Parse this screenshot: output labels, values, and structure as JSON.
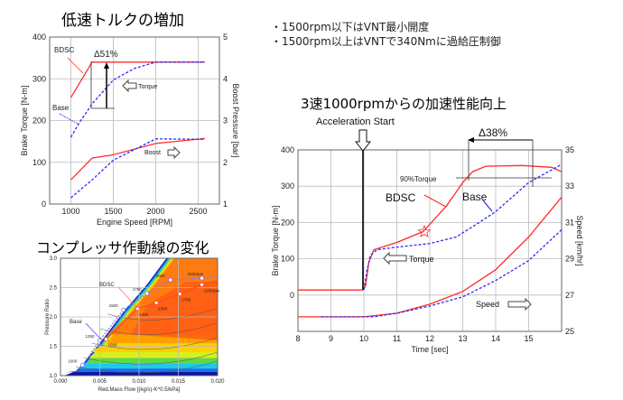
{
  "titles": {
    "low_speed_torque": "低速トルクの増加",
    "compressor_line": "コンプレッサ作動線の変化",
    "acceleration": "3速1000rpmからの加速性能向上"
  },
  "bullets": [
    "・1500rpm以下はVNT最小開度",
    "・1500rpm以上はVNTで340Nmに過給圧制御"
  ],
  "colors": {
    "bdsc": "#ff2a2a",
    "base": "#2a2aff",
    "grid": "#bbbbbb"
  },
  "chart_data": [
    {
      "type": "line",
      "xlabel": "Engine Speed [RPM]",
      "ylabel": "Brake Torque [N-m]",
      "y2label": "Boost Pressure [bar]",
      "xlim": [
        750,
        2750
      ],
      "ylim": [
        0,
        400
      ],
      "y2lim": [
        1,
        5
      ],
      "xticks": [
        "1000",
        "1500",
        "2000",
        "2500"
      ],
      "yticks": [
        "0",
        "100",
        "200",
        "300",
        "400"
      ],
      "y2ticks": [
        "1",
        "2",
        "3",
        "4",
        "5"
      ],
      "grid": true,
      "series": [
        {
          "name": "BDSC",
          "group": "Torque",
          "axis": "left",
          "style": "solid",
          "points": [
            [
              1000,
              255
            ],
            [
              1250,
              340
            ],
            [
              2580,
              340
            ]
          ]
        },
        {
          "name": "Base",
          "group": "Torque",
          "axis": "left",
          "style": "dashed",
          "points": [
            [
              1000,
              160
            ],
            [
              1100,
              195
            ],
            [
              1250,
              240
            ],
            [
              1500,
              297
            ],
            [
              1750,
              325
            ],
            [
              2000,
              340
            ],
            [
              2580,
              340
            ]
          ]
        },
        {
          "name": "BDSC",
          "group": "Boost",
          "axis": "right",
          "style": "solid",
          "points": [
            [
              1000,
              1.58
            ],
            [
              1250,
              2.1
            ],
            [
              1500,
              2.18
            ],
            [
              2000,
              2.45
            ],
            [
              2580,
              2.57
            ]
          ]
        },
        {
          "name": "Base",
          "group": "Boost",
          "axis": "right",
          "style": "dashed",
          "points": [
            [
              1000,
              1.15
            ],
            [
              1250,
              1.58
            ],
            [
              1500,
              2.05
            ],
            [
              2000,
              2.56
            ],
            [
              2580,
              2.55
            ]
          ]
        }
      ],
      "annotations": {
        "bdsc": "BDSC",
        "base": "Base",
        "delta": "Δ51%",
        "torque": "Torque",
        "boost": "Boost"
      }
    },
    {
      "type": "line",
      "xlabel": "Time [sec]",
      "ylabel": "Brake Torque [N-m]",
      "y2label": "Speed [km/hr]",
      "xlim": [
        8,
        16
      ],
      "ylim": [
        -100,
        400
      ],
      "y2lim": [
        25,
        35
      ],
      "xticks": [
        "8",
        "9",
        "10",
        "11",
        "12",
        "13",
        "14",
        "15"
      ],
      "yticks": [
        "0",
        "100",
        "200",
        "300",
        "400"
      ],
      "y2ticks": [
        "25",
        "27",
        "29",
        "31",
        "33",
        "35"
      ],
      "grid": true,
      "series": [
        {
          "name": "BDSC",
          "group": "Torque",
          "axis": "left",
          "style": "solid",
          "points": [
            [
              8,
              14
            ],
            [
              9.95,
              14
            ],
            [
              10.05,
              25
            ],
            [
              10.15,
              90
            ],
            [
              10.3,
              125
            ],
            [
              11,
              145
            ],
            [
              11.8,
              175
            ],
            [
              12.5,
              245
            ],
            [
              13,
              310
            ],
            [
              13.3,
              340
            ],
            [
              13.7,
              355
            ],
            [
              14.8,
              357
            ],
            [
              15.7,
              352
            ],
            [
              16,
              340
            ]
          ]
        },
        {
          "name": "Base",
          "group": "Torque",
          "axis": "left",
          "style": "dashed",
          "points": [
            [
              10,
              14
            ],
            [
              10.1,
              70
            ],
            [
              10.2,
              110
            ],
            [
              10.4,
              125
            ],
            [
              11,
              132
            ],
            [
              12,
              142
            ],
            [
              12.8,
              160
            ],
            [
              13.5,
              200
            ],
            [
              14,
              230
            ],
            [
              14.5,
              270
            ],
            [
              15,
              310
            ],
            [
              15.5,
              335
            ],
            [
              16,
              360
            ]
          ]
        },
        {
          "name": "BDSC",
          "group": "Speed",
          "axis": "right",
          "style": "solid",
          "points": [
            [
              8,
              25.8
            ],
            [
              10,
              25.8
            ],
            [
              11,
              26.0
            ],
            [
              12,
              26.5
            ],
            [
              13,
              27.2
            ],
            [
              14,
              28.4
            ],
            [
              15,
              30.2
            ],
            [
              16,
              32.4
            ]
          ]
        },
        {
          "name": "Base",
          "group": "Speed",
          "axis": "right",
          "style": "dashed",
          "points": [
            [
              8.7,
              25.8
            ],
            [
              10.3,
              25.8
            ],
            [
              11,
              26.0
            ],
            [
              12,
              26.4
            ],
            [
              13,
              26.9
            ],
            [
              14,
              27.8
            ],
            [
              15,
              28.9
            ],
            [
              16,
              30.6
            ]
          ]
        }
      ],
      "annotations": {
        "start": "Acceleration Start",
        "delta": "Δ38%",
        "torque90": "90%Torque",
        "bdsc": "BDSC",
        "base": "Base",
        "torque": "Torque",
        "speed": "Speed"
      }
    },
    {
      "type": "scatter",
      "xlabel": "Red.Mass Flow [(kg/s)-K^0.5/kPa]",
      "ylabel": "Pressure Ratio",
      "xlim": [
        0,
        0.02
      ],
      "ylim": [
        1,
        3
      ],
      "xticks": [
        "0.000",
        "0.005",
        "0.010",
        "0.015",
        "0.020"
      ],
      "yticks": [
        "1.0",
        "1.5",
        "2.0",
        "2.5",
        "3.0"
      ],
      "grid": true,
      "series": [
        {
          "name": "Base",
          "style": "dashed",
          "points": [
            [
              0.0028,
              1.18,
              "1000"
            ],
            [
              0.005,
              1.6,
              "1250"
            ],
            [
              0.008,
              2.12,
              "1500"
            ],
            [
              0.011,
              2.4,
              "1750"
            ],
            [
              0.014,
              2.63,
              "2000"
            ],
            [
              0.018,
              2.66,
              "2500rpm"
            ],
            [
              0.02,
              2.7,
              ""
            ]
          ]
        },
        {
          "name": "BDSC",
          "style": "solid",
          "points": [
            [
              0.0058,
              1.62,
              "1000"
            ],
            [
              0.0098,
              2.14,
              "1250"
            ],
            [
              0.0122,
              2.24,
              "1500"
            ],
            [
              0.0152,
              2.39,
              "1750"
            ],
            [
              0.018,
              2.55,
              "2200rpm"
            ],
            [
              0.02,
              2.62,
              ""
            ]
          ]
        }
      ],
      "annotations": {
        "bdsc": "BDSC",
        "base": "Base"
      }
    }
  ]
}
